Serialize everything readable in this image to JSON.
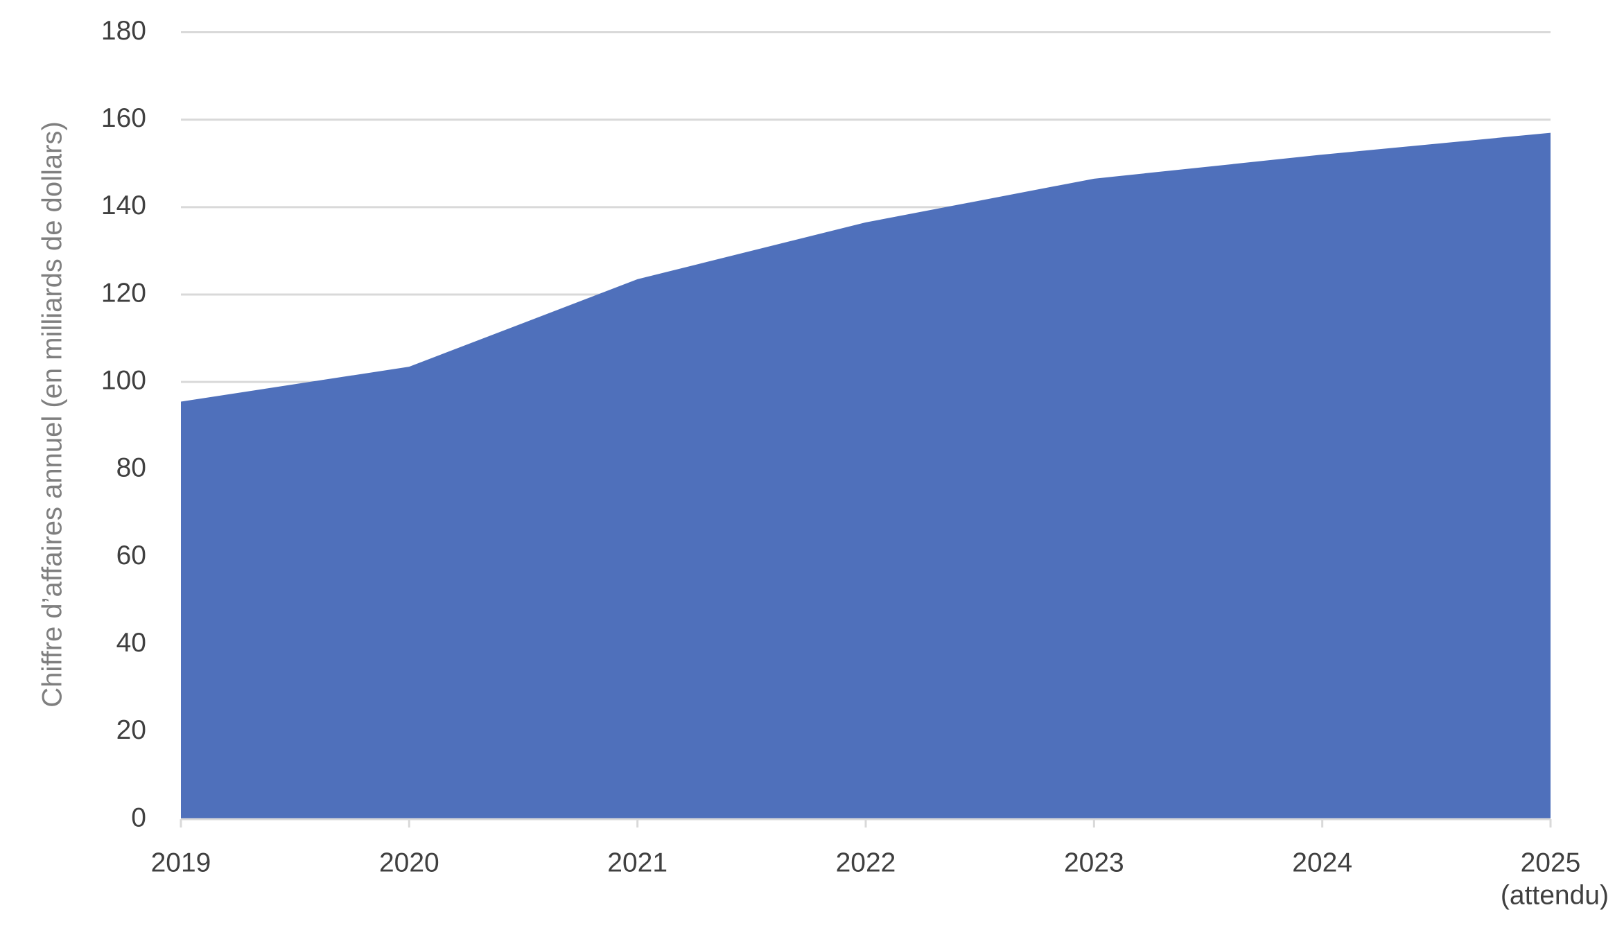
{
  "chart_data": {
    "type": "area",
    "y_label": "Chiffre d’affaires annuel (en milliards de dollars)",
    "categories": [
      "2019",
      "2020",
      "2021",
      "2022",
      "2023",
      "2024",
      "2025"
    ],
    "annotations": [
      {
        "text": "(attendu)",
        "category": "2025"
      }
    ],
    "series": [
      {
        "color": "#4f70bb",
        "values": [
          95.5,
          103.5,
          123.5,
          136.5,
          146.5,
          152,
          157
        ]
      }
    ],
    "ylim": [
      0,
      180
    ],
    "yticks": [
      0,
      20,
      40,
      60,
      80,
      100,
      120,
      140,
      160,
      180
    ],
    "grid": true
  }
}
